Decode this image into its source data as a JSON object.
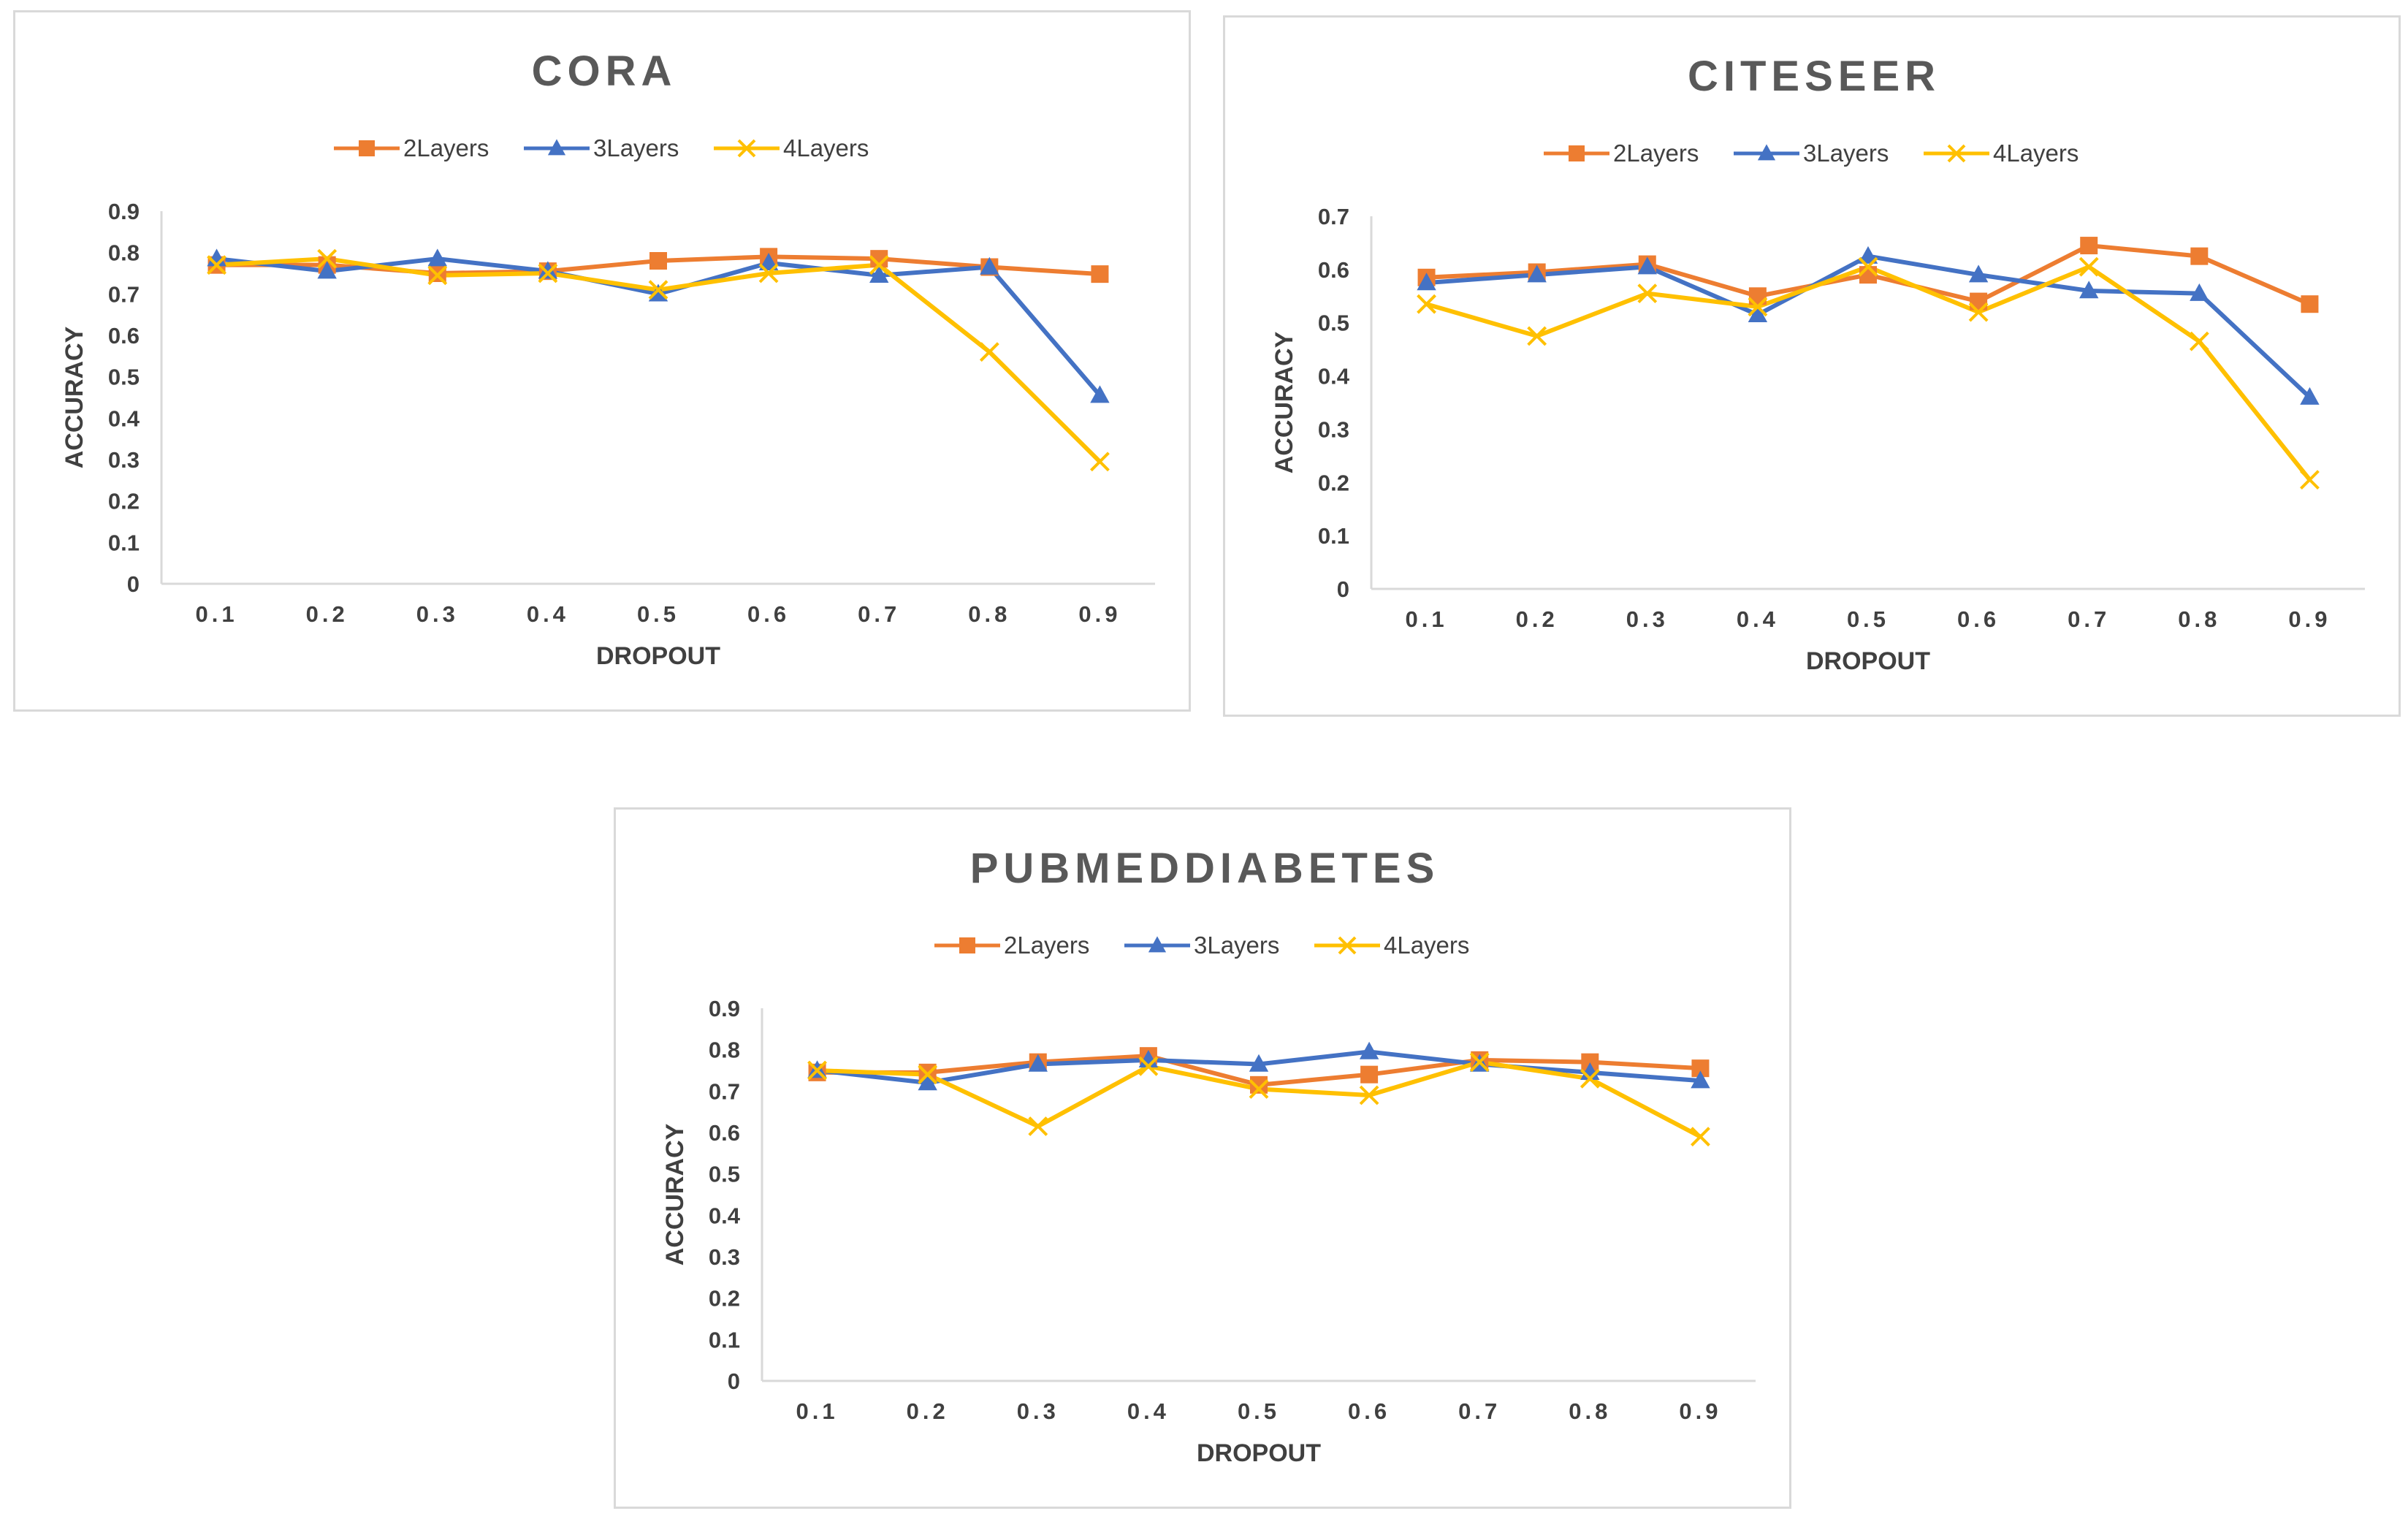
{
  "colors": {
    "2Layers": "#ED7D31",
    "3Layers": "#4472C4",
    "4Layers": "#FFC000",
    "axis": "#d9d9d9",
    "text": "#404040",
    "title": "#595959"
  },
  "chart_data": [
    {
      "type": "line",
      "title": "CORA",
      "xlabel": "DROPOUT",
      "ylabel": "ACCURACY",
      "categories": [
        "0.1",
        "0.2",
        "0.3",
        "0.4",
        "0.5",
        "0.6",
        "0.7",
        "0.8",
        "0.9"
      ],
      "yticks": [
        "0",
        "0.1",
        "0.2",
        "0.3",
        "0.4",
        "0.5",
        "0.6",
        "0.7",
        "0.8",
        "0.9"
      ],
      "ylim": [
        0,
        0.9
      ],
      "grid": false,
      "legend_position": "top",
      "series": [
        {
          "name": "2Layers",
          "marker": "square",
          "values": [
            0.77,
            0.77,
            0.75,
            0.755,
            0.78,
            0.79,
            0.785,
            0.765,
            0.748
          ]
        },
        {
          "name": "3Layers",
          "marker": "triangle",
          "values": [
            0.785,
            0.755,
            0.785,
            0.755,
            0.7,
            0.775,
            0.745,
            0.765,
            0.455
          ]
        },
        {
          "name": "4Layers",
          "marker": "x",
          "values": [
            0.77,
            0.785,
            0.745,
            0.75,
            0.71,
            0.75,
            0.77,
            0.56,
            0.295
          ]
        }
      ]
    },
    {
      "type": "line",
      "title": "CITESEER",
      "xlabel": "DROPOUT",
      "ylabel": "ACCURACY",
      "categories": [
        "0.1",
        "0.2",
        "0.3",
        "0.4",
        "0.5",
        "0.6",
        "0.7",
        "0.8",
        "0.9"
      ],
      "yticks": [
        "0",
        "0.1",
        "0.2",
        "0.3",
        "0.4",
        "0.5",
        "0.6",
        "0.7"
      ],
      "ylim": [
        0,
        0.7
      ],
      "grid": false,
      "legend_position": "top",
      "series": [
        {
          "name": "2Layers",
          "marker": "square",
          "values": [
            0.585,
            0.595,
            0.61,
            0.55,
            0.59,
            0.54,
            0.645,
            0.625,
            0.535
          ]
        },
        {
          "name": "3Layers",
          "marker": "triangle",
          "values": [
            0.575,
            0.59,
            0.605,
            0.515,
            0.625,
            0.59,
            0.56,
            0.555,
            0.36
          ]
        },
        {
          "name": "4Layers",
          "marker": "x",
          "values": [
            0.535,
            0.475,
            0.555,
            0.53,
            0.605,
            0.52,
            0.605,
            0.465,
            0.205
          ]
        }
      ]
    },
    {
      "type": "line",
      "title": "PUBMEDDIABETES",
      "xlabel": "DROPOUT",
      "ylabel": "ACCURACY",
      "categories": [
        "0.1",
        "0.2",
        "0.3",
        "0.4",
        "0.5",
        "0.6",
        "0.7",
        "0.8",
        "0.9"
      ],
      "yticks": [
        "0",
        "0.1",
        "0.2",
        "0.3",
        "0.4",
        "0.5",
        "0.6",
        "0.7",
        "0.8",
        "0.9"
      ],
      "ylim": [
        0,
        0.9
      ],
      "grid": false,
      "legend_position": "top",
      "series": [
        {
          "name": "2Layers",
          "marker": "square",
          "values": [
            0.745,
            0.745,
            0.77,
            0.785,
            0.715,
            0.74,
            0.775,
            0.77,
            0.755
          ]
        },
        {
          "name": "3Layers",
          "marker": "triangle",
          "values": [
            0.75,
            0.72,
            0.765,
            0.775,
            0.765,
            0.795,
            0.765,
            0.745,
            0.725
          ]
        },
        {
          "name": "4Layers",
          "marker": "x",
          "values": [
            0.75,
            0.74,
            0.615,
            0.76,
            0.705,
            0.69,
            0.77,
            0.73,
            0.59
          ]
        }
      ]
    }
  ]
}
